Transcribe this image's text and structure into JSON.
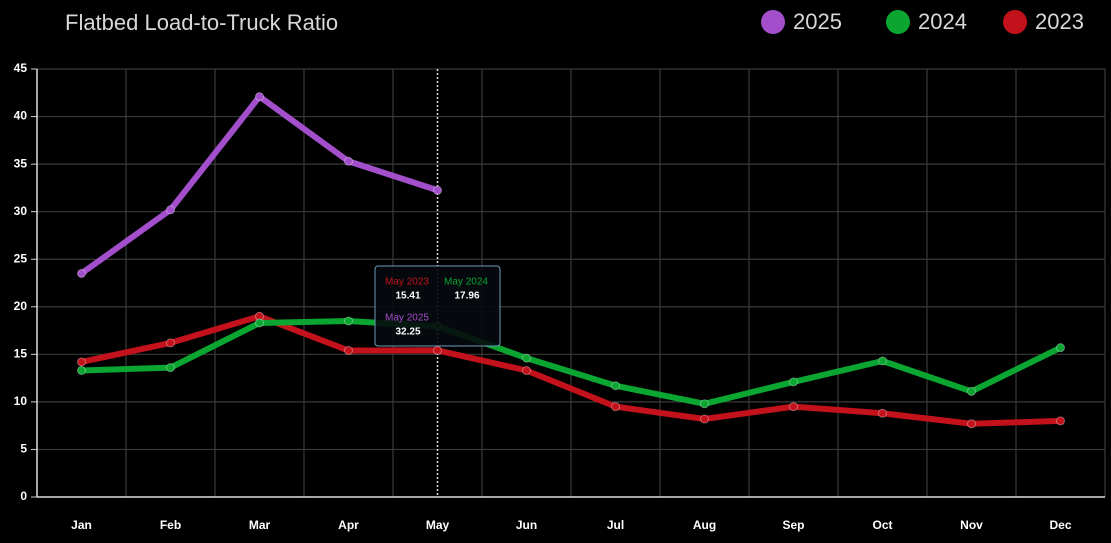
{
  "chart_data": {
    "type": "line",
    "title": "Flatbed Load-to-Truck Ratio",
    "categories": [
      "Jan",
      "Feb",
      "Mar",
      "Apr",
      "May",
      "Jun",
      "Jul",
      "Aug",
      "Sep",
      "Oct",
      "Nov",
      "Dec"
    ],
    "series": [
      {
        "name": "2025",
        "color": "#a34fcc",
        "values": [
          23.5,
          30.2,
          42.1,
          35.3,
          32.25,
          null,
          null,
          null,
          null,
          null,
          null,
          null
        ]
      },
      {
        "name": "2024",
        "color": "#0aa631",
        "values": [
          13.3,
          13.6,
          18.3,
          18.5,
          17.96,
          14.6,
          11.7,
          9.8,
          12.1,
          14.3,
          11.1,
          15.7
        ]
      },
      {
        "name": "2023",
        "color": "#c3121b",
        "values": [
          14.2,
          16.2,
          19.0,
          15.4,
          15.41,
          13.3,
          9.5,
          8.2,
          9.5,
          8.8,
          7.7,
          8.0
        ]
      }
    ],
    "ylim": [
      0,
      45
    ],
    "yticks": [
      0,
      5,
      10,
      15,
      20,
      25,
      30,
      35,
      40,
      45
    ],
    "grid": true,
    "legend": "top-right",
    "tooltip": {
      "labels": [
        "May 2023",
        "May 2024",
        "May 2025"
      ]
    }
  }
}
